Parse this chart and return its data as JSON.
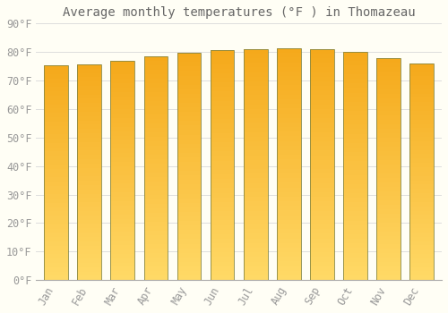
{
  "title": "Average monthly temperatures (°F ) in Thomazeau",
  "months": [
    "Jan",
    "Feb",
    "Mar",
    "Apr",
    "May",
    "Jun",
    "Jul",
    "Aug",
    "Sep",
    "Oct",
    "Nov",
    "Dec"
  ],
  "values": [
    75.2,
    75.7,
    76.8,
    78.4,
    79.7,
    80.6,
    81.1,
    81.3,
    81.1,
    80.2,
    77.9,
    76.1
  ],
  "bar_color_top": "#F5A800",
  "bar_color_bottom": "#FFD966",
  "bar_edge_color": "#888844",
  "background_color": "#FFFEF5",
  "grid_color": "#DDDDDD",
  "text_color": "#999999",
  "title_color": "#666666",
  "ylim": [
    0,
    90
  ],
  "yticks": [
    0,
    10,
    20,
    30,
    40,
    50,
    60,
    70,
    80,
    90
  ],
  "title_fontsize": 10,
  "tick_fontsize": 8.5
}
